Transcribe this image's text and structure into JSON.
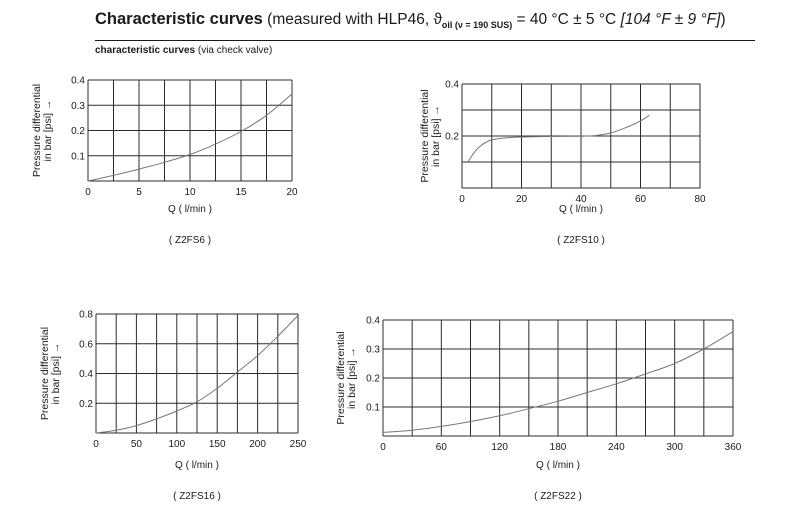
{
  "header": {
    "title_bold": "Characteristic curves",
    "title_regular": "(measured with HLP46, ϑ",
    "title_sub": "oil (ν = 190 SUS)",
    "title_rest": "= 40 °C ± 5 °C",
    "title_italic": "[104 °F ± 9 °F]",
    "title_close": ")"
  },
  "subheading": {
    "bold": "characteristic curves",
    "regular": "(via check valve)"
  },
  "colors": {
    "grid": "#2b2b2b",
    "curve": "#777777",
    "text": "#1a1a1a"
  },
  "chart_data": [
    {
      "id": "z2fs6",
      "type": "line",
      "model_label": "( Z2FS6 )",
      "xlabel": "Q  ( l/min )",
      "ylabel_line1": "Pressure differential",
      "ylabel_line2": "in bar [psi] →",
      "xlim": [
        0,
        20
      ],
      "ylim": [
        0,
        0.4
      ],
      "x_ticks": [
        0,
        5,
        10,
        15,
        20
      ],
      "x_tick_labels": [
        "0",
        "5",
        "10",
        "15",
        "20"
      ],
      "y_ticks": [
        0.1,
        0.2,
        0.3,
        0.4
      ],
      "y_tick_labels": [
        "0.1",
        "0.2",
        "0.3",
        "0.4"
      ],
      "x_grid": [
        0,
        2.5,
        5,
        7.5,
        10,
        12.5,
        15,
        17.5,
        20
      ],
      "y_grid": [
        0,
        0.1,
        0.2,
        0.3,
        0.4
      ],
      "series": [
        {
          "x": [
            0,
            2.5,
            5,
            7.5,
            10,
            12.5,
            15,
            17.5,
            20
          ],
          "y": [
            0,
            0.022,
            0.047,
            0.074,
            0.105,
            0.146,
            0.196,
            0.26,
            0.345
          ]
        }
      ]
    },
    {
      "id": "z2fs10",
      "type": "line",
      "model_label": "( Z2FS10 )",
      "xlabel": "Q  ( l/min )",
      "ylabel_line1": "Pressure differential",
      "ylabel_line2": "in bar [psi] →",
      "xlim": [
        0,
        80
      ],
      "ylim": [
        0,
        0.4
      ],
      "x_ticks": [
        0,
        20,
        40,
        60,
        80
      ],
      "x_tick_labels": [
        "0",
        "20",
        "40",
        "60",
        "80"
      ],
      "y_ticks": [
        0.2,
        0.4
      ],
      "y_tick_labels": [
        "0.2",
        "0.4"
      ],
      "x_grid": [
        0,
        10,
        20,
        30,
        40,
        50,
        60,
        70,
        80
      ],
      "y_grid": [
        0,
        0.1,
        0.2,
        0.3,
        0.4
      ],
      "series": [
        {
          "x": [
            2,
            4,
            6,
            8,
            10,
            15,
            20,
            30,
            40,
            45,
            50,
            55,
            60,
            63
          ],
          "y": [
            0.1,
            0.135,
            0.16,
            0.175,
            0.185,
            0.193,
            0.196,
            0.198,
            0.199,
            0.202,
            0.212,
            0.232,
            0.258,
            0.28
          ]
        }
      ]
    },
    {
      "id": "z2fs16",
      "type": "line",
      "model_label": "( Z2FS16 )",
      "xlabel": "Q  ( l/min )",
      "ylabel_line1": "Pressure differential",
      "ylabel_line2": "in bar [psi] →",
      "xlim": [
        0,
        250
      ],
      "ylim": [
        0,
        0.8
      ],
      "x_ticks": [
        0,
        50,
        100,
        150,
        200,
        250
      ],
      "x_tick_labels": [
        "0",
        "50",
        "100",
        "150",
        "200",
        "250"
      ],
      "y_ticks": [
        0.2,
        0.4,
        0.6,
        0.8
      ],
      "y_tick_labels": [
        "0.2",
        "0.4",
        "0.6",
        "0.8"
      ],
      "x_grid": [
        0,
        25,
        50,
        75,
        100,
        125,
        150,
        175,
        200,
        225,
        250
      ],
      "y_grid": [
        0,
        0.2,
        0.4,
        0.6,
        0.8
      ],
      "series": [
        {
          "x": [
            0,
            25,
            50,
            75,
            100,
            125,
            150,
            175,
            200,
            225,
            250
          ],
          "y": [
            0,
            0.018,
            0.05,
            0.095,
            0.148,
            0.21,
            0.3,
            0.41,
            0.52,
            0.65,
            0.79
          ]
        }
      ]
    },
    {
      "id": "z2fs22",
      "type": "line",
      "model_label": "( Z2FS22 )",
      "xlabel": "Q  ( l/min )",
      "ylabel_line1": "Pressure differential",
      "ylabel_line2": "in bar [psi] →",
      "xlim": [
        0,
        360
      ],
      "ylim": [
        0,
        0.4
      ],
      "x_ticks": [
        0,
        60,
        120,
        180,
        240,
        300,
        360
      ],
      "x_tick_labels": [
        "0",
        "60",
        "120",
        "180",
        "240",
        "300",
        "360"
      ],
      "y_ticks": [
        0.1,
        0.2,
        0.3,
        0.4
      ],
      "y_tick_labels": [
        "0.1",
        "0.2",
        "0.3",
        "0.4"
      ],
      "x_grid": [
        0,
        30,
        60,
        90,
        120,
        150,
        180,
        210,
        240,
        270,
        300,
        330,
        360
      ],
      "y_grid": [
        0,
        0.1,
        0.2,
        0.3,
        0.4
      ],
      "series": [
        {
          "x": [
            0,
            30,
            60,
            90,
            120,
            150,
            180,
            210,
            240,
            270,
            300,
            330,
            360
          ],
          "y": [
            0.012,
            0.02,
            0.033,
            0.05,
            0.07,
            0.094,
            0.12,
            0.15,
            0.18,
            0.214,
            0.25,
            0.3,
            0.36
          ]
        }
      ]
    }
  ]
}
